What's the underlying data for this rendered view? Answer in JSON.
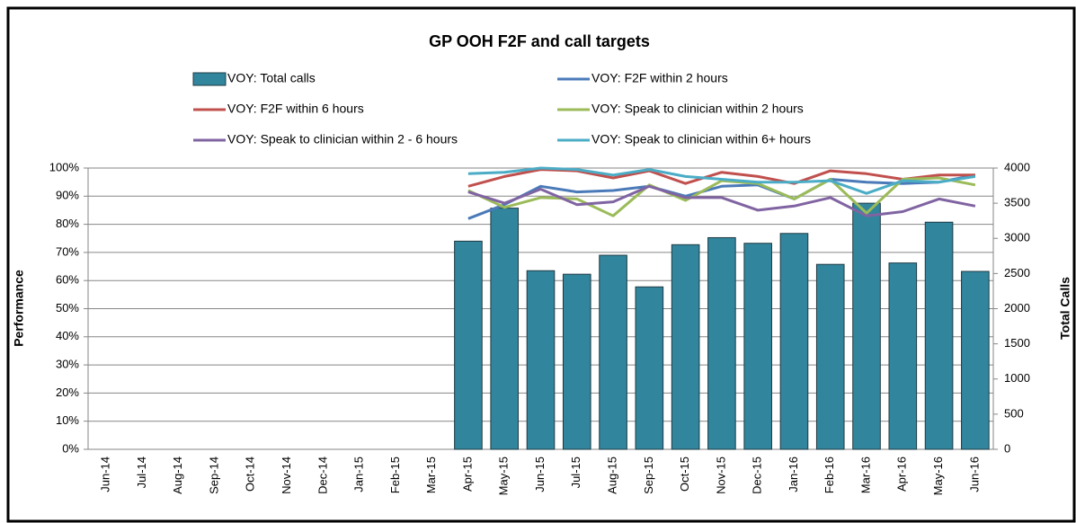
{
  "chart_data": {
    "type": "bar_line",
    "title": "GP OOH F2F and call targets",
    "y_label": "Performance",
    "y2_label": "Total Calls",
    "categories": [
      "Jun-14",
      "Jul-14",
      "Aug-14",
      "Sep-14",
      "Oct-14",
      "Nov-14",
      "Dec-14",
      "Jan-15",
      "Feb-15",
      "Mar-15",
      "Apr-15",
      "May-15",
      "Jun-15",
      "Jul-15",
      "Aug-15",
      "Sep-15",
      "Oct-15",
      "Nov-15",
      "Dec-15",
      "Jan-16",
      "Feb-16",
      "Mar-16",
      "Apr-16",
      "May-16",
      "Jun-16"
    ],
    "ylim": [
      0,
      100
    ],
    "yticks": [
      {
        "value": 0,
        "label": "0%"
      },
      {
        "value": 10,
        "label": "10%"
      },
      {
        "value": 20,
        "label": "20%"
      },
      {
        "value": 30,
        "label": "30%"
      },
      {
        "value": 40,
        "label": "40%"
      },
      {
        "value": 50,
        "label": "50%"
      },
      {
        "value": 60,
        "label": "60%"
      },
      {
        "value": 70,
        "label": "70%"
      },
      {
        "value": 80,
        "label": "80%"
      },
      {
        "value": 90,
        "label": "90%"
      },
      {
        "value": 100,
        "label": "100%"
      }
    ],
    "y2lim": [
      0,
      4000
    ],
    "y2ticks": [
      0,
      500,
      1000,
      1500,
      2000,
      2500,
      3000,
      3500,
      4000
    ],
    "grid": true,
    "series": [
      {
        "name": "VOY: Total calls",
        "type": "bar",
        "axis": "y2",
        "color": "#31859c",
        "values": [
          null,
          null,
          null,
          null,
          null,
          null,
          null,
          null,
          null,
          null,
          2960,
          3430,
          2540,
          2490,
          2760,
          2310,
          2910,
          3010,
          2930,
          3070,
          2630,
          3500,
          2650,
          3230,
          2530
        ]
      },
      {
        "name": "VOY: F2F within 2 hours",
        "type": "line",
        "color": "#4a7ab8",
        "values": [
          null,
          null,
          null,
          null,
          null,
          null,
          null,
          null,
          null,
          null,
          82,
          87,
          93.5,
          91.5,
          92,
          93.5,
          90,
          93.5,
          94,
          89,
          96,
          95,
          94.5,
          95,
          97.5
        ]
      },
      {
        "name": "VOY: F2F within 6 hours",
        "type": "line",
        "color": "#c0504d",
        "values": [
          null,
          null,
          null,
          null,
          null,
          null,
          null,
          null,
          null,
          null,
          93.5,
          97,
          99.5,
          99,
          96.5,
          99,
          94.5,
          98.5,
          97,
          94.5,
          99,
          98,
          96,
          97.5,
          97.5
        ]
      },
      {
        "name": "VOY: Speak to clinician within 2 hours",
        "type": "line",
        "color": "#9bbb59",
        "values": [
          null,
          null,
          null,
          null,
          null,
          null,
          null,
          null,
          null,
          null,
          92,
          86,
          89.5,
          89,
          83,
          94,
          88.5,
          95.5,
          94.5,
          89,
          96,
          84,
          96,
          96.5,
          94
        ]
      },
      {
        "name": "VOY: Speak to clinician within 2 - 6 hours",
        "type": "line",
        "color": "#8064a2",
        "values": [
          null,
          null,
          null,
          null,
          null,
          null,
          null,
          null,
          null,
          null,
          91.5,
          87.5,
          92.5,
          87,
          88,
          93.5,
          89.5,
          89.5,
          85,
          86.5,
          89.5,
          83,
          84.5,
          89,
          86.5
        ]
      },
      {
        "name": "VOY: Speak to clinician within 6+ hours",
        "type": "line",
        "color": "#4bacc6",
        "values": [
          null,
          null,
          null,
          null,
          null,
          null,
          null,
          null,
          null,
          null,
          98,
          98.5,
          100,
          99.5,
          97.5,
          99.5,
          97,
          96,
          95,
          95,
          95.5,
          91,
          95.5,
          95,
          97
        ]
      }
    ]
  }
}
